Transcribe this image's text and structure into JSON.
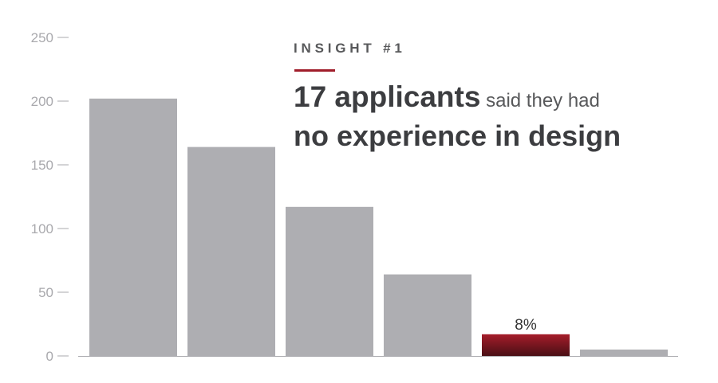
{
  "chart_data": {
    "type": "bar",
    "categories": [
      "",
      "",
      "",
      "",
      "",
      ""
    ],
    "values": [
      202,
      164,
      117,
      64,
      17,
      5
    ],
    "ylim": [
      0,
      250
    ],
    "yticks": [
      0,
      50,
      100,
      150,
      200,
      250
    ],
    "highlight_index": 4,
    "data_labels": [
      "",
      "",
      "",
      "",
      "8%",
      ""
    ],
    "grid": false,
    "legend": "none",
    "colors": {
      "bar": "#aeaeb2",
      "highlight_top": "#a51d2a",
      "highlight_bottom": "#4a0f15",
      "axis": "#a9a9ad",
      "tick_label": "#a9a9ad"
    }
  },
  "insight": {
    "kicker": "INSIGHT #1",
    "headline_emphasis": "17 applicants",
    "headline_rest": " said they had",
    "headline_line2": "no experience in design"
  }
}
